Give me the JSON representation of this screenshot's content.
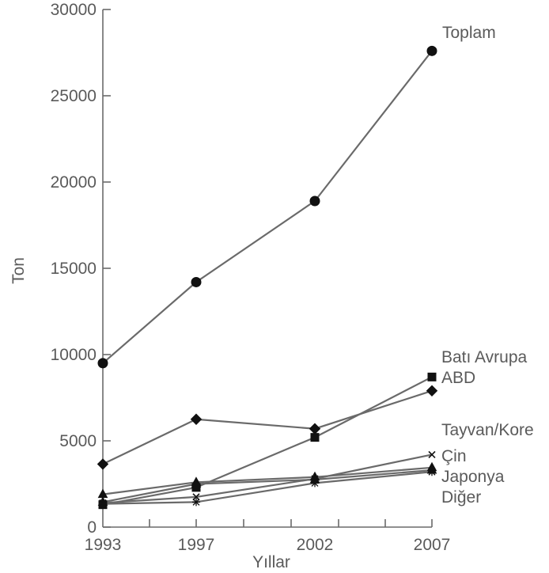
{
  "chart_data": {
    "type": "line",
    "title": "",
    "xlabel": "Yıllar",
    "ylabel": "Ton",
    "x": [
      1993,
      1997,
      2002,
      2007
    ],
    "x_ticks": [
      "1993",
      "1997",
      "2002",
      "2007"
    ],
    "y_ticks": [
      "0",
      "5000",
      "10000",
      "15000",
      "20000",
      "25000",
      "30000"
    ],
    "ylim": [
      0,
      30000
    ],
    "grid": false,
    "legend": "labels at line ends",
    "series": [
      {
        "name": "Toplam",
        "marker": "circle",
        "values": [
          9500,
          14200,
          18900,
          27600
        ]
      },
      {
        "name": "Batı Avrupa",
        "marker": "square",
        "values": [
          1300,
          2300,
          5200,
          8700
        ]
      },
      {
        "name": "ABD",
        "marker": "diamond",
        "values": [
          3650,
          6250,
          5700,
          7900
        ]
      },
      {
        "name": "Tayvan/Kore",
        "marker": "cross",
        "values": [
          1400,
          1750,
          2800,
          4200
        ]
      },
      {
        "name": "Çin",
        "marker": "triangle",
        "values": [
          1900,
          2600,
          2900,
          3450
        ]
      },
      {
        "name": "Japonya",
        "marker": "triangle",
        "values": [
          1450,
          2500,
          2750,
          3300
        ]
      },
      {
        "name": "Diğer",
        "marker": "star",
        "values": [
          1350,
          1450,
          2550,
          3200
        ]
      }
    ]
  }
}
